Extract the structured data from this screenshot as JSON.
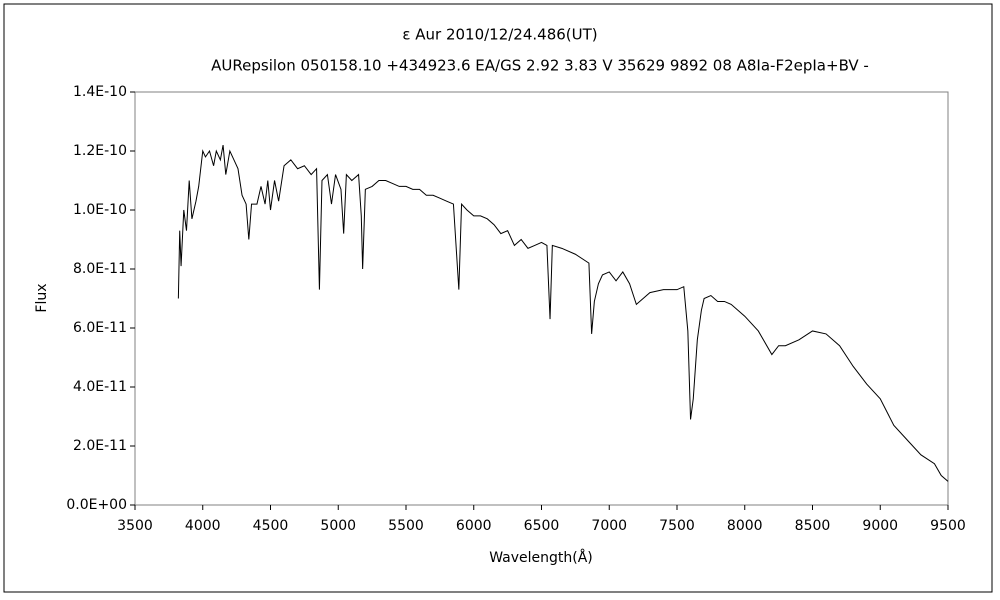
{
  "chart_data": {
    "type": "line",
    "title": "ε  Aur   2010/12/24.486(UT)",
    "subtitle": "AURepsilon 050158.10 +434923.6 EA/GS 2.92 3.83 V 35629 9892 08 A8Ia-F2epIa+BV -",
    "x_label": "Wavelength(Å)",
    "y_label": "Flux",
    "xlim": [
      3500,
      9500
    ],
    "xticks": [
      3500,
      4000,
      4500,
      5000,
      5500,
      6000,
      6500,
      7000,
      7500,
      8000,
      8500,
      9000,
      9500
    ],
    "ylim": [
      0,
      1.4e-10
    ],
    "yticks": [
      {
        "value": 0,
        "label": "0.0E+00"
      },
      {
        "value": 2e-11,
        "label": "2.0E-11"
      },
      {
        "value": 4e-11,
        "label": "4.0E-11"
      },
      {
        "value": 6e-11,
        "label": "6.0E-11"
      },
      {
        "value": 8e-11,
        "label": "8.0E-11"
      },
      {
        "value": 1e-10,
        "label": "1.0E-10"
      },
      {
        "value": 1.2e-10,
        "label": "1.2E-10"
      },
      {
        "value": 1.4e-10,
        "label": "1.4E-10"
      }
    ],
    "grid": false,
    "x": [
      3820,
      3830,
      3840,
      3860,
      3880,
      3900,
      3920,
      3950,
      3970,
      4000,
      4020,
      4050,
      4080,
      4100,
      4130,
      4150,
      4170,
      4200,
      4230,
      4260,
      4290,
      4320,
      4340,
      4360,
      4400,
      4430,
      4460,
      4480,
      4500,
      4530,
      4560,
      4600,
      4650,
      4700,
      4750,
      4800,
      4840,
      4861,
      4880,
      4920,
      4950,
      4980,
      5020,
      5040,
      5060,
      5100,
      5150,
      5170,
      5180,
      5200,
      5250,
      5300,
      5350,
      5400,
      5450,
      5500,
      5550,
      5600,
      5650,
      5700,
      5750,
      5800,
      5850,
      5890,
      5910,
      5950,
      6000,
      6050,
      6100,
      6150,
      6200,
      6250,
      6300,
      6350,
      6400,
      6450,
      6500,
      6540,
      6563,
      6580,
      6650,
      6750,
      6850,
      6870,
      6890,
      6920,
      6950,
      7000,
      7050,
      7100,
      7150,
      7200,
      7250,
      7300,
      7400,
      7500,
      7550,
      7580,
      7600,
      7620,
      7650,
      7680,
      7700,
      7750,
      7800,
      7850,
      7900,
      8000,
      8100,
      8200,
      8250,
      8300,
      8400,
      8500,
      8600,
      8700,
      8800,
      8900,
      9000,
      9100,
      9200,
      9300,
      9400,
      9450,
      9500
    ],
    "series": [
      {
        "color": "#000000",
        "values": [
          7e-11,
          9.3e-11,
          8.1e-11,
          1e-10,
          9.3e-11,
          1.1e-10,
          9.7e-11,
          1.03e-10,
          1.08e-10,
          1.2e-10,
          1.18e-10,
          1.2e-10,
          1.15e-10,
          1.2e-10,
          1.17e-10,
          1.22e-10,
          1.12e-10,
          1.2e-10,
          1.17e-10,
          1.14e-10,
          1.05e-10,
          1.02e-10,
          9e-11,
          1.02e-10,
          1.02e-10,
          1.08e-10,
          1.02e-10,
          1.1e-10,
          1e-10,
          1.1e-10,
          1.03e-10,
          1.15e-10,
          1.17e-10,
          1.14e-10,
          1.15e-10,
          1.12e-10,
          1.14e-10,
          7.3e-11,
          1.1e-10,
          1.12e-10,
          1.02e-10,
          1.12e-10,
          1.07e-10,
          9.2e-11,
          1.12e-10,
          1.1e-10,
          1.12e-10,
          9.8e-11,
          8e-11,
          1.07e-10,
          1.08e-10,
          1.1e-10,
          1.1e-10,
          1.09e-10,
          1.08e-10,
          1.08e-10,
          1.07e-10,
          1.07e-10,
          1.05e-10,
          1.05e-10,
          1.04e-10,
          1.03e-10,
          1.02e-10,
          7.3e-11,
          1.02e-10,
          1e-10,
          9.8e-11,
          9.8e-11,
          9.7e-11,
          9.5e-11,
          9.2e-11,
          9.3e-11,
          8.8e-11,
          9e-11,
          8.7e-11,
          8.8e-11,
          8.9e-11,
          8.8e-11,
          6.3e-11,
          8.8e-11,
          8.7e-11,
          8.5e-11,
          8.2e-11,
          5.8e-11,
          6.9e-11,
          7.5e-11,
          7.8e-11,
          7.9e-11,
          7.6e-11,
          7.9e-11,
          7.5e-11,
          6.8e-11,
          7e-11,
          7.2e-11,
          7.3e-11,
          7.3e-11,
          7.4e-11,
          5.9e-11,
          2.9e-11,
          3.6e-11,
          5.6e-11,
          6.6e-11,
          7e-11,
          7.1e-11,
          6.9e-11,
          6.9e-11,
          6.8e-11,
          6.4e-11,
          5.9e-11,
          5.1e-11,
          5.4e-11,
          5.4e-11,
          5.6e-11,
          5.9e-11,
          5.8e-11,
          5.4e-11,
          4.7e-11,
          4.1e-11,
          3.6e-11,
          2.7e-11,
          2.2e-11,
          1.7e-11,
          1.4e-11,
          1e-11,
          8e-12
        ]
      }
    ]
  }
}
